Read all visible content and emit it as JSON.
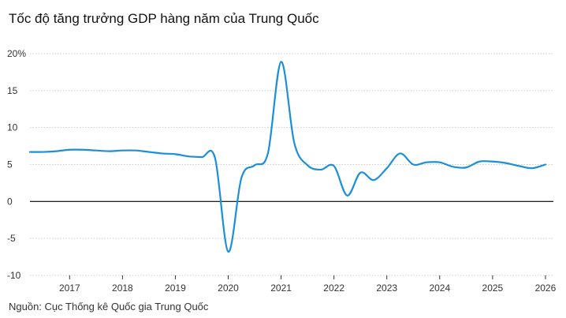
{
  "title": "Tốc độ tăng trưởng GDP hàng năm của Trung Quốc",
  "source": "Nguồn: Cục Thống kê Quốc gia Trung Quốc",
  "colors": {
    "line": "#1b8fd9",
    "grid": "#cccccc",
    "zero": "#000000"
  },
  "chart_data": {
    "type": "line",
    "title": "Tốc độ tăng trưởng GDP hàng năm của Trung Quốc",
    "xlabel": "",
    "ylabel": "",
    "ylim": [
      -10,
      20
    ],
    "xlim": [
      2016.25,
      2026.15
    ],
    "grid": true,
    "legend": "none",
    "y_ticks": [
      {
        "value": 20,
        "label": "20%"
      },
      {
        "value": 15,
        "label": "15"
      },
      {
        "value": 10,
        "label": "10"
      },
      {
        "value": 5,
        "label": "5"
      },
      {
        "value": 0,
        "label": "0"
      },
      {
        "value": -5,
        "label": "-5"
      },
      {
        "value": -10,
        "label": "-10"
      }
    ],
    "x_ticks": [
      {
        "value": 2017,
        "label": "2017"
      },
      {
        "value": 2018,
        "label": "2018"
      },
      {
        "value": 2019,
        "label": "2019"
      },
      {
        "value": 2020,
        "label": "2020"
      },
      {
        "value": 2021,
        "label": "2021"
      },
      {
        "value": 2022,
        "label": "2022"
      },
      {
        "value": 2023,
        "label": "2023"
      },
      {
        "value": 2024,
        "label": "2024"
      },
      {
        "value": 2025,
        "label": "2025"
      },
      {
        "value": 2026,
        "label": "2026"
      }
    ],
    "series": [
      {
        "points": [
          [
            2016.25,
            6.7
          ],
          [
            2016.5,
            6.7
          ],
          [
            2016.75,
            6.8
          ],
          [
            2017.0,
            7.0
          ],
          [
            2017.25,
            7.0
          ],
          [
            2017.5,
            6.9
          ],
          [
            2017.75,
            6.8
          ],
          [
            2018.0,
            6.9
          ],
          [
            2018.25,
            6.9
          ],
          [
            2018.5,
            6.7
          ],
          [
            2018.75,
            6.5
          ],
          [
            2019.0,
            6.4
          ],
          [
            2019.25,
            6.1
          ],
          [
            2019.5,
            6.0
          ],
          [
            2019.75,
            5.9
          ],
          [
            2020.0,
            -6.8
          ],
          [
            2020.25,
            3.2
          ],
          [
            2020.5,
            4.9
          ],
          [
            2020.75,
            6.5
          ],
          [
            2021.0,
            18.9
          ],
          [
            2021.25,
            7.9
          ],
          [
            2021.5,
            4.9
          ],
          [
            2021.75,
            4.3
          ],
          [
            2022.0,
            4.8
          ],
          [
            2022.25,
            0.8
          ],
          [
            2022.5,
            3.9
          ],
          [
            2022.75,
            2.9
          ],
          [
            2023.0,
            4.5
          ],
          [
            2023.25,
            6.5
          ],
          [
            2023.5,
            5.0
          ],
          [
            2023.75,
            5.3
          ],
          [
            2024.0,
            5.3
          ],
          [
            2024.25,
            4.7
          ],
          [
            2024.5,
            4.6
          ],
          [
            2024.75,
            5.4
          ],
          [
            2025.0,
            5.4
          ],
          [
            2025.25,
            5.2
          ],
          [
            2025.5,
            4.8
          ],
          [
            2025.75,
            4.5
          ],
          [
            2026.0,
            5.0
          ]
        ]
      }
    ]
  }
}
